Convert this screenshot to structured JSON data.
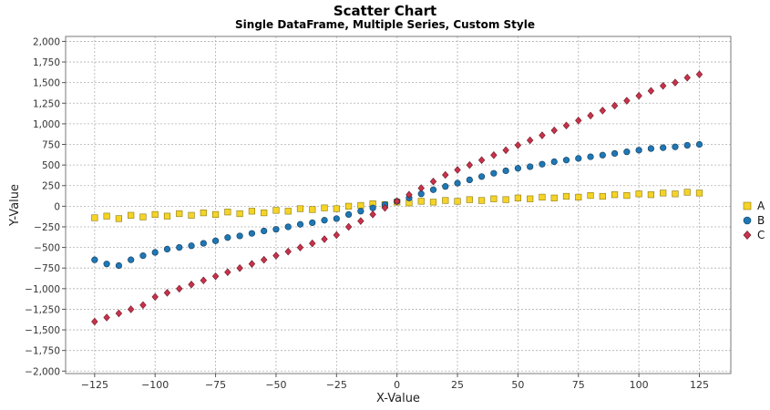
{
  "chart_data": {
    "type": "scatter",
    "title": "Scatter Chart",
    "subtitle": "Single DataFrame, Multiple Series, Custom Style",
    "xlabel": "X-Value",
    "ylabel": "Y-Value",
    "xlim": [
      -137,
      138
    ],
    "ylim": [
      -2030,
      2060
    ],
    "xticks": [
      -125,
      -100,
      -75,
      -50,
      -25,
      0,
      25,
      50,
      75,
      100,
      125
    ],
    "yticks": [
      -2000,
      -1750,
      -1500,
      -1250,
      -1000,
      -750,
      -500,
      -250,
      0,
      250,
      500,
      750,
      1000,
      1250,
      1500,
      1750,
      2000
    ],
    "xtick_labels": [
      "−125",
      "−100",
      "−75",
      "−50",
      "−25",
      "0",
      "25",
      "50",
      "75",
      "100",
      "125"
    ],
    "ytick_labels": [
      "−2,000",
      "−1,750",
      "−1,500",
      "−1,250",
      "−1,000",
      "−750",
      "−500",
      "−250",
      "0",
      "250",
      "500",
      "750",
      "1,000",
      "1,250",
      "1,500",
      "1,750",
      "2,000"
    ],
    "grid": true,
    "legend_position": "right",
    "x": [
      -125,
      -120,
      -115,
      -110,
      -105,
      -100,
      -95,
      -90,
      -85,
      -80,
      -75,
      -70,
      -65,
      -60,
      -55,
      -50,
      -45,
      -40,
      -35,
      -30,
      -25,
      -20,
      -15,
      -10,
      -5,
      0,
      5,
      10,
      15,
      20,
      25,
      30,
      35,
      40,
      45,
      50,
      55,
      60,
      65,
      70,
      75,
      80,
      85,
      90,
      95,
      100,
      105,
      110,
      115,
      120,
      125
    ],
    "series": [
      {
        "name": "A",
        "color": "#f5d327",
        "stroke": "#8a7a10",
        "marker": "square",
        "values": [
          -140,
          -120,
          -150,
          -110,
          -130,
          -100,
          -120,
          -90,
          -110,
          -80,
          -100,
          -70,
          -90,
          -60,
          -80,
          -50,
          -60,
          -30,
          -40,
          -20,
          -30,
          0,
          10,
          30,
          20,
          50,
          40,
          60,
          50,
          70,
          60,
          80,
          70,
          90,
          80,
          100,
          90,
          110,
          100,
          120,
          110,
          130,
          120,
          140,
          130,
          150,
          140,
          160,
          150,
          170,
          160
        ]
      },
      {
        "name": "B",
        "color": "#1f77b4",
        "stroke": "#0e3d5e",
        "marker": "circle",
        "values": [
          -650,
          -700,
          -720,
          -650,
          -600,
          -560,
          -520,
          -500,
          -480,
          -450,
          -420,
          -380,
          -360,
          -330,
          -300,
          -280,
          -250,
          -220,
          -200,
          -170,
          -150,
          -100,
          -60,
          -20,
          20,
          60,
          100,
          150,
          200,
          240,
          280,
          320,
          360,
          400,
          430,
          460,
          480,
          510,
          540,
          560,
          580,
          600,
          620,
          640,
          660,
          680,
          700,
          710,
          720,
          740,
          750
        ]
      },
      {
        "name": "C",
        "color": "#c8324a",
        "stroke": "#6b1a27",
        "marker": "diamond",
        "values": [
          -1400,
          -1350,
          -1300,
          -1250,
          -1200,
          -1100,
          -1050,
          -1000,
          -950,
          -900,
          -850,
          -800,
          -750,
          -700,
          -650,
          -600,
          -550,
          -500,
          -450,
          -400,
          -350,
          -250,
          -180,
          -100,
          -20,
          60,
          140,
          220,
          300,
          380,
          440,
          500,
          560,
          620,
          680,
          740,
          800,
          860,
          920,
          980,
          1040,
          1100,
          1160,
          1220,
          1280,
          1340,
          1400,
          1460,
          1500,
          1560,
          1600
        ]
      }
    ]
  }
}
